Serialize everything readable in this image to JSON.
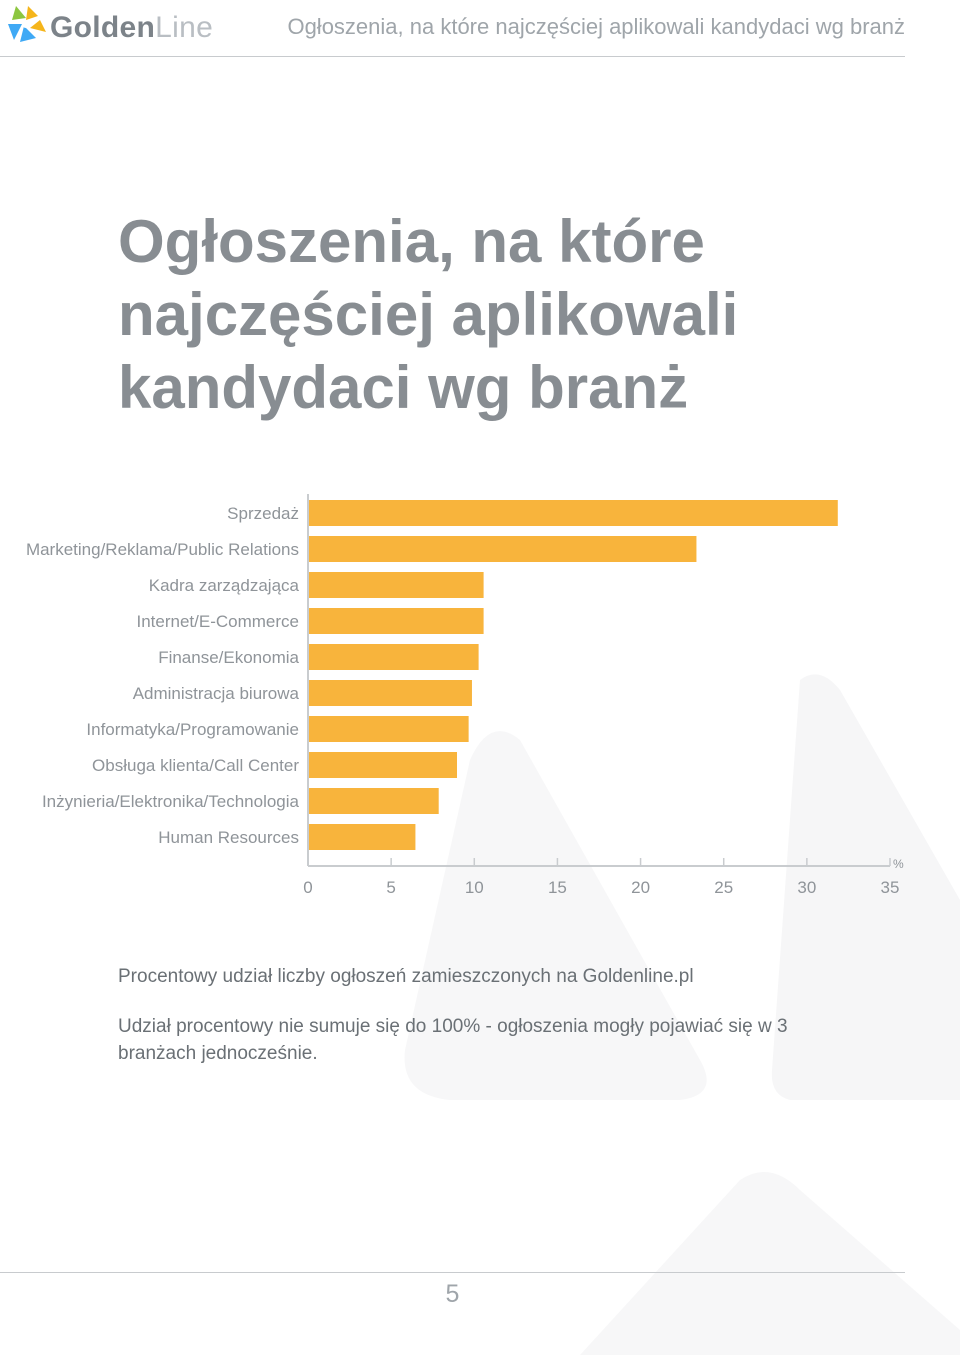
{
  "header": {
    "logo_golden": "Golden",
    "logo_line": "Line",
    "title": "Ogłoszenia, na które najczęściej aplikowali kandydaci wg branż"
  },
  "main_title": "Ogłoszenia, na które najczęściej aplikowali kandydaci wg branż",
  "chart_data": {
    "type": "bar",
    "orientation": "horizontal",
    "categories": [
      "Sprzedaż",
      "Marketing/Reklama/Public Relations",
      "Kadra zarządzająca",
      "Internet/E-Commerce",
      "Finanse/Ekonomia",
      "Administracja biurowa",
      "Informatyka/Programowanie",
      "Obsługa klienta/Call Center",
      "Inżynieria/Elektronika/Technologia",
      "Human Resources"
    ],
    "values": [
      31.8,
      23.3,
      10.5,
      10.5,
      10.2,
      9.8,
      9.6,
      8.9,
      7.8,
      6.4
    ],
    "xticks": [
      "0",
      "5",
      "10",
      "15",
      "20",
      "25",
      "30",
      "35"
    ],
    "xlim": [
      0,
      35
    ],
    "unit": "%",
    "bar_color": "#f8b43c",
    "axis_color": "#c9cccf",
    "label_color": "#8f9499"
  },
  "caption": "Procentowy udział liczby ogłoszeń zamieszczonych na Goldenline.pl",
  "note": "Udział procentowy nie sumuje się do 100% - ogłoszenia mogły pojawiać się w 3 branżach jednocześnie.",
  "page_number": "5"
}
